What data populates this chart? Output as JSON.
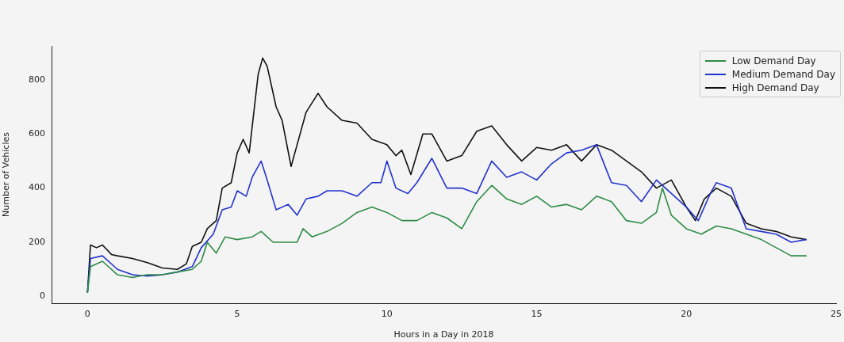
{
  "chart_data": {
    "type": "line",
    "xlabel": "Hours in a Day in 2018",
    "ylabel": "Number of Vehicles",
    "xlim": [
      -1.2,
      25
    ],
    "xticks": [
      0,
      5,
      10,
      15,
      20,
      25
    ],
    "ylim": [
      -25,
      925
    ],
    "yticks": [
      0,
      200,
      400,
      600,
      800
    ],
    "grid": false,
    "legend": "top right",
    "marker": "none",
    "line_style": "solid",
    "series": [
      {
        "name": "Low Demand Day",
        "color": "#2e8b46",
        "x": [
          0,
          0.1,
          0.5,
          1,
          1.5,
          2,
          2.5,
          3,
          3.5,
          3.8,
          4,
          4.3,
          4.6,
          5,
          5.5,
          5.8,
          6.2,
          6.5,
          7,
          7.2,
          7.5,
          8,
          8.5,
          9,
          9.5,
          10,
          10.5,
          11,
          11.5,
          12,
          12.5,
          13,
          13.5,
          14,
          14.5,
          15,
          15.5,
          16,
          16.5,
          17,
          17.5,
          18,
          18.5,
          19,
          19.2,
          19.5,
          20,
          20.5,
          21,
          21.5,
          22,
          22.5,
          23,
          23.5,
          24
        ],
        "values": [
          15,
          110,
          130,
          80,
          70,
          80,
          80,
          90,
          100,
          130,
          200,
          160,
          220,
          210,
          220,
          240,
          200,
          200,
          200,
          250,
          220,
          240,
          270,
          310,
          330,
          310,
          280,
          280,
          310,
          290,
          250,
          350,
          410,
          360,
          340,
          370,
          330,
          340,
          320,
          370,
          350,
          280,
          270,
          310,
          400,
          300,
          250,
          230,
          260,
          250,
          230,
          210,
          180,
          150,
          150
        ]
      },
      {
        "name": "Medium Demand Day",
        "color": "#2233cc",
        "x": [
          0,
          0.1,
          0.5,
          1,
          1.5,
          2,
          2.5,
          3,
          3.5,
          3.8,
          4.2,
          4.5,
          4.8,
          5,
          5.3,
          5.5,
          5.8,
          6,
          6.3,
          6.7,
          7,
          7.3,
          7.7,
          8,
          8.5,
          9,
          9.5,
          9.8,
          10,
          10.3,
          10.7,
          11,
          11.5,
          12,
          12.5,
          13,
          13.5,
          14,
          14.5,
          15,
          15.5,
          16,
          16.5,
          17,
          17.5,
          18,
          18.5,
          19,
          19.5,
          20,
          20.4,
          20.8,
          21,
          21.5,
          22,
          22.5,
          23,
          23.5,
          24
        ],
        "values": [
          15,
          140,
          150,
          100,
          80,
          75,
          80,
          90,
          110,
          180,
          230,
          320,
          330,
          390,
          370,
          440,
          500,
          430,
          320,
          340,
          300,
          360,
          370,
          390,
          390,
          370,
          420,
          420,
          500,
          400,
          380,
          420,
          510,
          400,
          400,
          380,
          500,
          440,
          460,
          430,
          490,
          530,
          540,
          560,
          420,
          410,
          350,
          430,
          380,
          330,
          280,
          380,
          420,
          400,
          250,
          240,
          230,
          200,
          210
        ]
      },
      {
        "name": "High Demand Day",
        "color": "#111111",
        "x": [
          0,
          0.1,
          0.3,
          0.5,
          0.8,
          1,
          1.5,
          2,
          2.5,
          3,
          3.3,
          3.5,
          3.8,
          4,
          4.3,
          4.5,
          4.8,
          5,
          5.2,
          5.4,
          5.7,
          5.85,
          6,
          6.3,
          6.5,
          6.8,
          7,
          7.3,
          7.7,
          8,
          8.5,
          9,
          9.5,
          10,
          10.3,
          10.5,
          10.8,
          11.2,
          11.5,
          12,
          12.5,
          13,
          13.5,
          14,
          14.5,
          15,
          15.5,
          16,
          16.5,
          17,
          17.5,
          18,
          18.5,
          19,
          19.5,
          20,
          20.3,
          20.6,
          21,
          21.5,
          22,
          22.5,
          23,
          23.5,
          24
        ],
        "values": [
          15,
          190,
          180,
          190,
          155,
          150,
          140,
          125,
          105,
          100,
          120,
          185,
          200,
          250,
          280,
          400,
          420,
          530,
          580,
          530,
          820,
          880,
          850,
          700,
          650,
          480,
          560,
          680,
          750,
          700,
          650,
          640,
          580,
          560,
          520,
          540,
          450,
          600,
          600,
          500,
          520,
          610,
          630,
          560,
          500,
          550,
          540,
          560,
          500,
          560,
          540,
          500,
          460,
          400,
          430,
          330,
          280,
          360,
          400,
          370,
          270,
          250,
          240,
          220,
          210
        ]
      }
    ]
  }
}
